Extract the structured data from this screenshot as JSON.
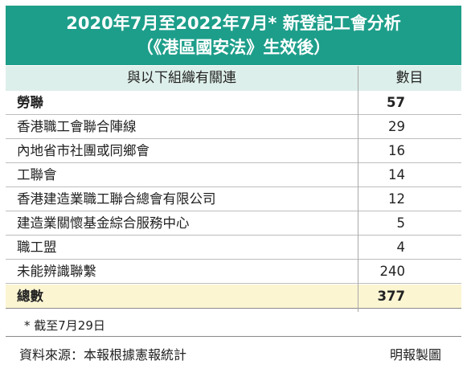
{
  "title": {
    "line1": "2020年7月至2022年7月* 新登記工會分析",
    "line2": "（《港區國安法》生效後）"
  },
  "table": {
    "headers": [
      "與以下組織有關連",
      "數目"
    ],
    "rows": [
      {
        "name": "勞聯",
        "count": "57"
      },
      {
        "name": "香港職工會聯合陣線",
        "count": "29"
      },
      {
        "name": "內地省市社團或同鄉會",
        "count": "16"
      },
      {
        "name": "工聯會",
        "count": "14"
      },
      {
        "name": "香港建造業職工聯合總會有限公司",
        "count": "12"
      },
      {
        "name": "建造業關懷基金綜合服務中心",
        "count": "5"
      },
      {
        "name": "職工盟",
        "count": "4"
      },
      {
        "name": "未能辨識聯繫",
        "count": "240"
      }
    ],
    "total": {
      "name": "總數",
      "count": "377"
    }
  },
  "footnote": "* 截至7月29日",
  "source": "資料來源：本報根據憲報統計",
  "credit": "明報製圖",
  "colors": {
    "title_bg": "#1d9e8a",
    "header_bg": "#ddefea",
    "total_bg": "#fbf5d2"
  }
}
